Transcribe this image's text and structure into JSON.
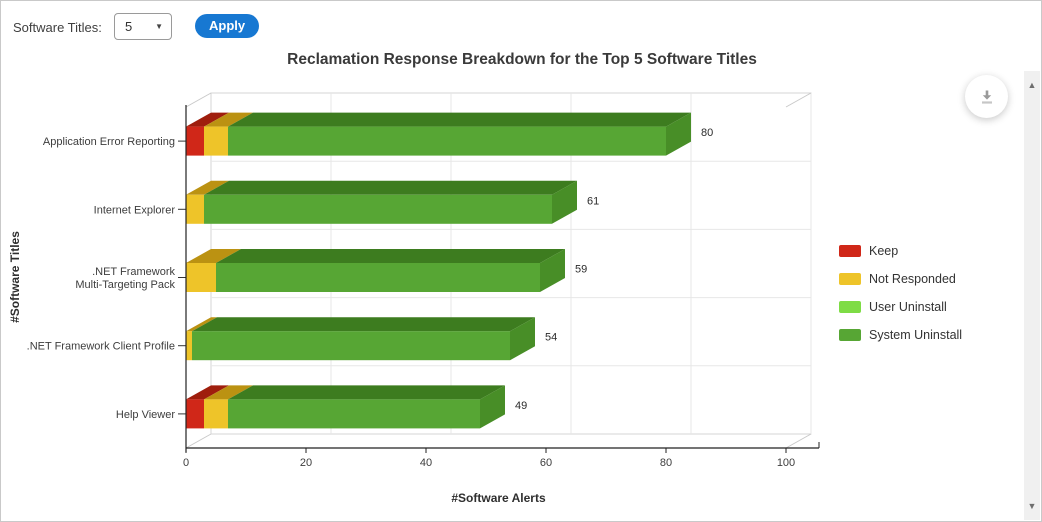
{
  "toolbar": {
    "software_titles_label": "Software Titles:",
    "selected_value": "5",
    "apply_label": "Apply",
    "apply_color": "#1778d2"
  },
  "icons": {
    "select_caret": "▼",
    "scroll_up": "▲",
    "scroll_down": "▼",
    "download": "download-arrow"
  },
  "chart_data": {
    "type": "bar",
    "orientation": "horizontal",
    "stacked": true,
    "style": "3d",
    "title": "Reclamation Response Breakdown for the Top 5 Software Titles",
    "xlabel": "#Software Alerts",
    "ylabel": "#Software Titles",
    "xlim": [
      0,
      100
    ],
    "xticks": [
      0,
      20,
      40,
      60,
      80,
      100
    ],
    "grid": true,
    "legend_position": "right",
    "categories": [
      "Application Error Reporting",
      "Internet Explorer",
      ".NET Framework\nMulti-Targeting Pack",
      ".NET Framework Client Profile",
      "Help Viewer"
    ],
    "series": [
      {
        "name": "Keep",
        "color": "#d02718",
        "top": "#9f1e0d",
        "side": "#b22113",
        "values": [
          3,
          0,
          0,
          0,
          3
        ]
      },
      {
        "name": "Not Responded",
        "color": "#eec429",
        "top": "#bb9212",
        "side": "#d4a81c",
        "values": [
          4,
          3,
          5,
          1,
          4
        ]
      },
      {
        "name": "User Uninstall",
        "color": "#7edc45",
        "top": "#5cb32c",
        "side": "#6dc938",
        "values": [
          0,
          0,
          0,
          0,
          0
        ]
      },
      {
        "name": "System Uninstall",
        "color": "#57a634",
        "top": "#3d7c1f",
        "side": "#488e27",
        "values": [
          73,
          58,
          54,
          53,
          42
        ]
      }
    ],
    "totals": [
      80,
      61,
      59,
      54,
      49
    ]
  }
}
